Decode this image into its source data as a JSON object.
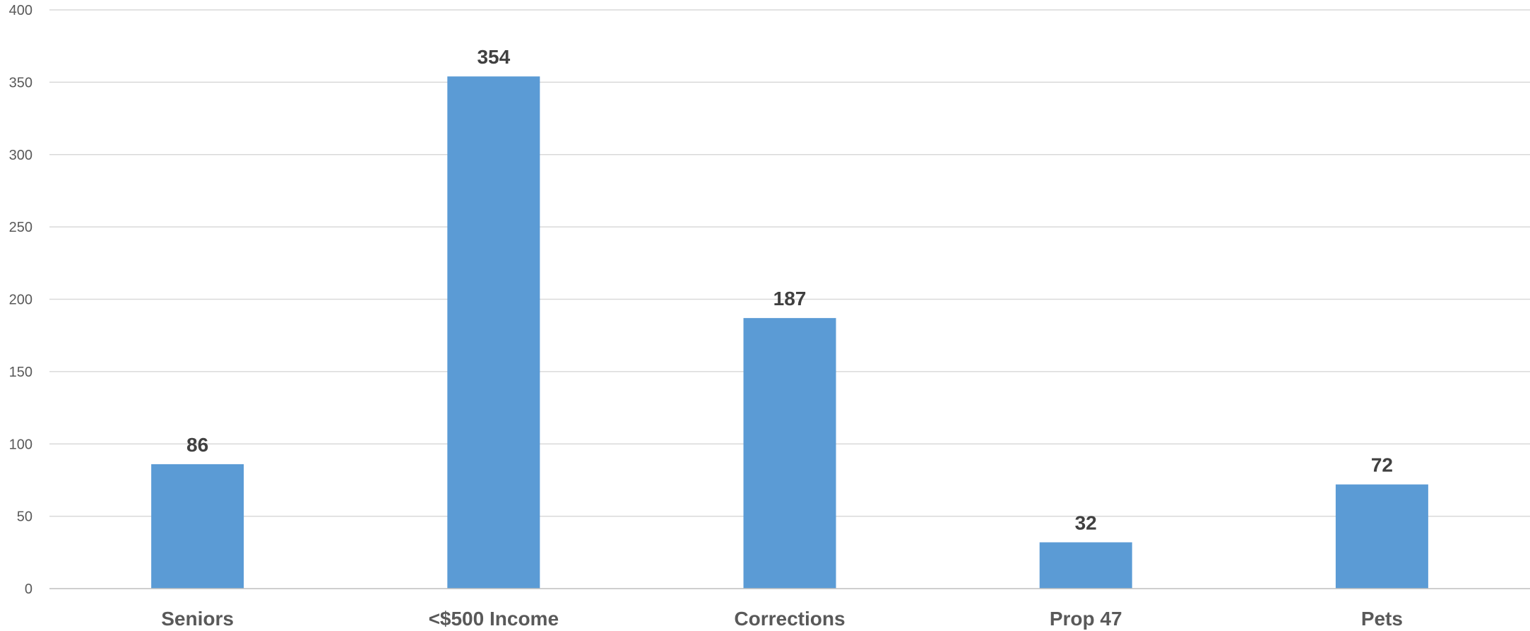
{
  "chart_data": {
    "type": "bar",
    "categories": [
      "Seniors",
      "<$500 Income",
      "Corrections",
      "Prop 47",
      "Pets"
    ],
    "values": [
      86,
      354,
      187,
      32,
      72
    ],
    "data_labels": [
      "86",
      "354",
      "187",
      "32",
      "72"
    ],
    "y_ticks": [
      "0",
      "50",
      "100",
      "150",
      "200",
      "250",
      "300",
      "350",
      "400"
    ],
    "y_tick_values": [
      0,
      50,
      100,
      150,
      200,
      250,
      300,
      350,
      400
    ],
    "ylim": [
      0,
      400
    ],
    "grid": true,
    "legend": "none",
    "bar_color": "#5b9bd5",
    "title": "",
    "xlabel": "",
    "ylabel": ""
  }
}
